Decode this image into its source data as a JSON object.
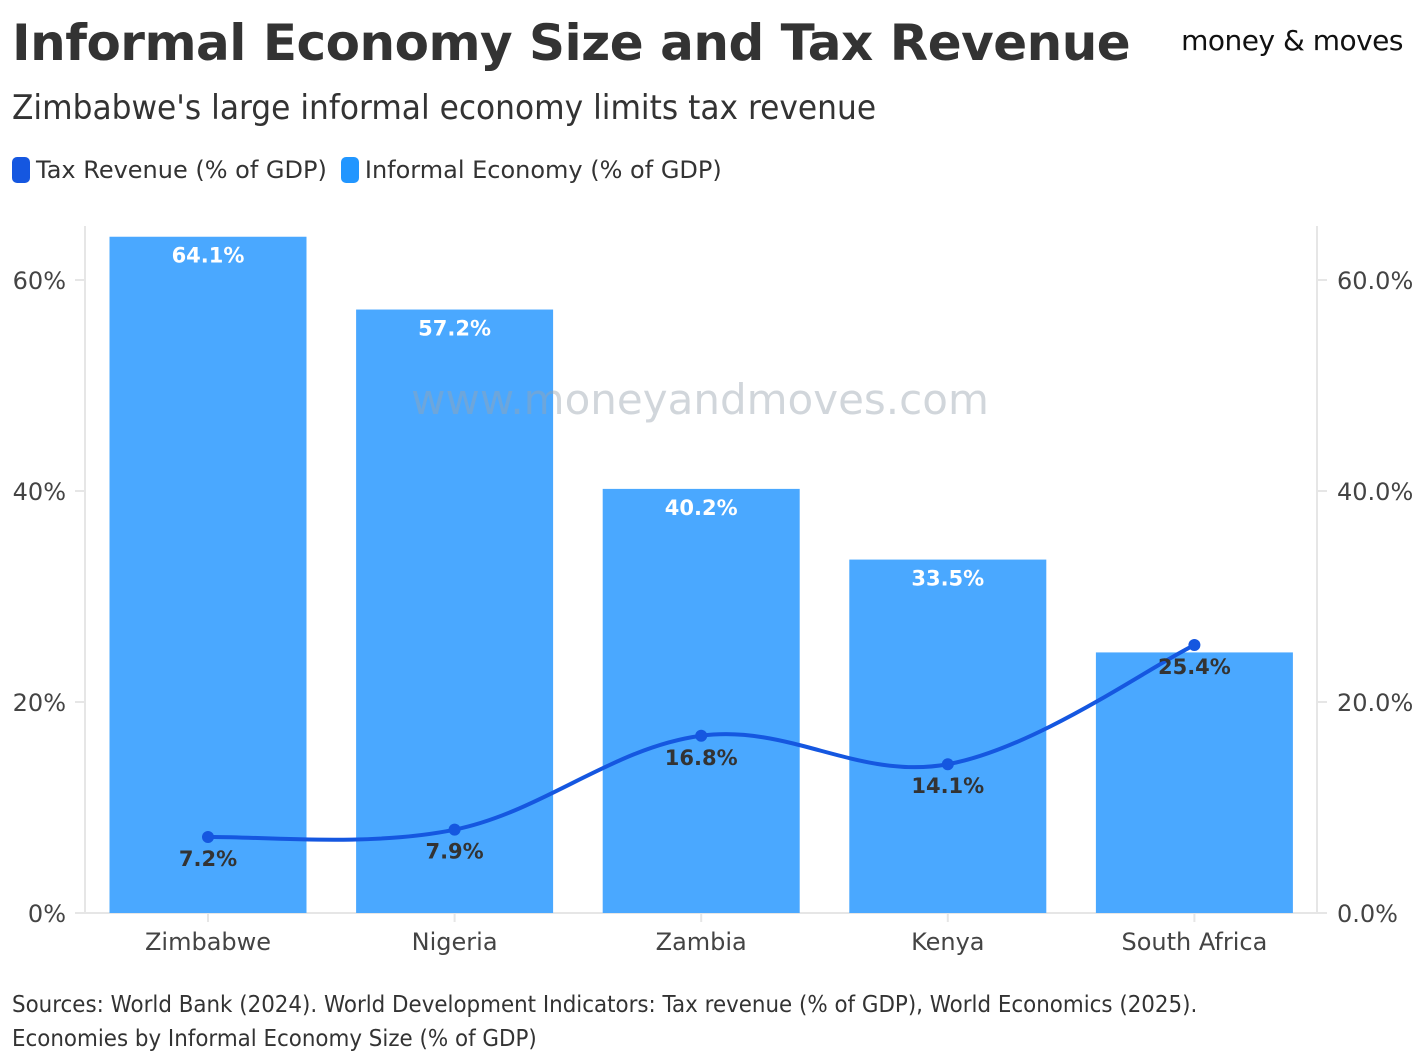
{
  "header": {
    "title": "Informal Economy Size and Tax Revenue",
    "subtitle": "Zimbabwe's large informal economy limits tax revenue",
    "logo": "money & moves"
  },
  "watermark": "www.moneyandmoves.com",
  "sources": "Sources: World Bank (2024). World Development Indicators: Tax revenue (% of GDP), World Economics (2025). Economies by Informal Economy Size (% of GDP)",
  "chart_data": {
    "type": "bar",
    "title": "Informal Economy Size and Tax Revenue",
    "categories": [
      "Zimbabwe",
      "Nigeria",
      "Zambia",
      "Kenya",
      "South Africa"
    ],
    "series": [
      {
        "name": "Tax Revenue (% of GDP)",
        "type": "line",
        "color": "#1557e0",
        "values": [
          7.2,
          7.9,
          16.8,
          14.1,
          25.4
        ],
        "labels": [
          "7.2%",
          "7.9%",
          "16.8%",
          "14.1%",
          "25.4%"
        ]
      },
      {
        "name": "Informal Economy (% of GDP)",
        "type": "bar",
        "color": "#4aa8ff",
        "values": [
          64.1,
          57.2,
          40.2,
          33.5,
          24.7
        ],
        "labels": [
          "64.1%",
          "57.2%",
          "40.2%",
          "33.5%",
          ""
        ]
      }
    ],
    "y_left": {
      "ticks": [
        "0%",
        "20%",
        "40%",
        "60%"
      ],
      "tick_values": [
        0,
        20,
        40,
        60
      ]
    },
    "y_right": {
      "ticks": [
        "0.0%",
        "20.0%",
        "40.0%",
        "60.0%"
      ],
      "tick_values": [
        0,
        20,
        40,
        60
      ]
    },
    "ylim": [
      0,
      65
    ],
    "legend": "top-left"
  }
}
